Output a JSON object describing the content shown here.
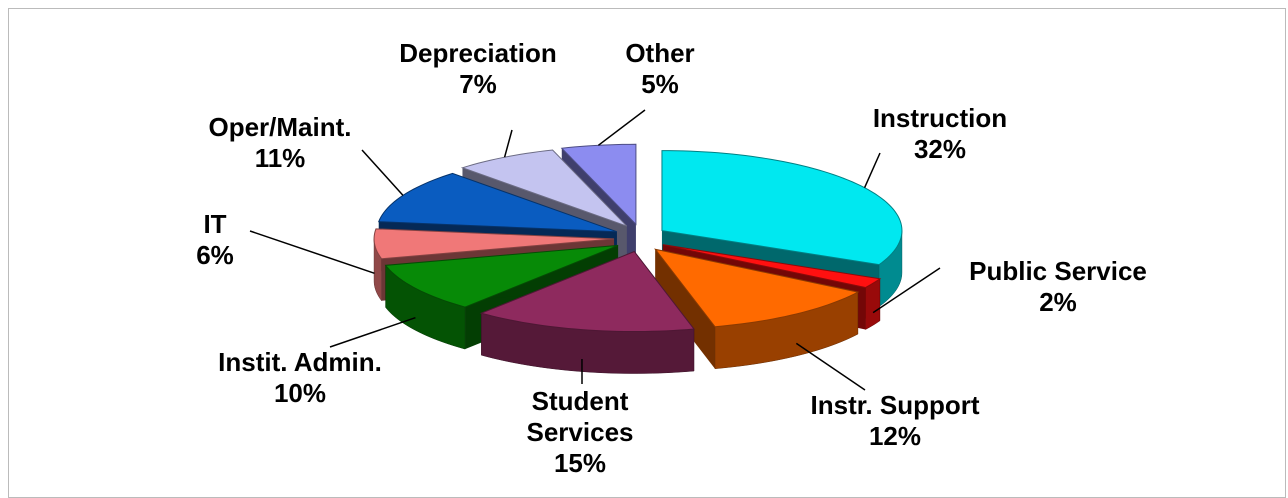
{
  "chart_data": {
    "type": "pie",
    "categories": [
      "Instruction",
      "Public Service",
      "Instr. Support",
      "Student Services",
      "Instit. Admin.",
      "IT",
      "Oper/Maint.",
      "Depreciation",
      "Other"
    ],
    "values": [
      32,
      2,
      12,
      15,
      10,
      6,
      11,
      7,
      5
    ],
    "value_labels": [
      "32%",
      "2%",
      "12%",
      "15%",
      "10%",
      "6%",
      "11%",
      "7%",
      "5%"
    ],
    "colors": [
      "#00e8f0",
      "#ff1010",
      "#ff6a00",
      "#8e2a5e",
      "#078a07",
      "#f07878",
      "#0a5cc0",
      "#c4c4f0",
      "#8c8cf0"
    ]
  }
}
